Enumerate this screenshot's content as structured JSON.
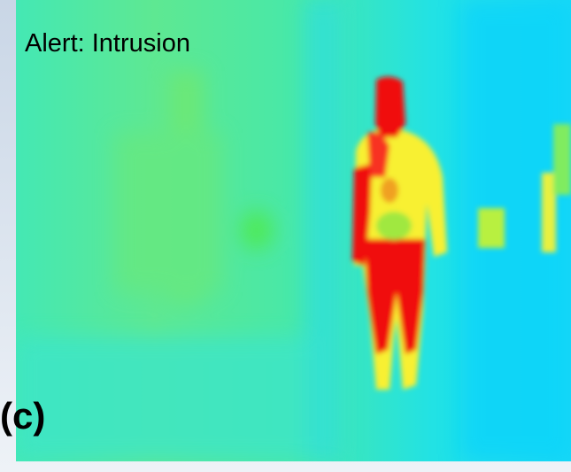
{
  "alert": "Alert: Intrusion",
  "panel_label": "(c)"
}
